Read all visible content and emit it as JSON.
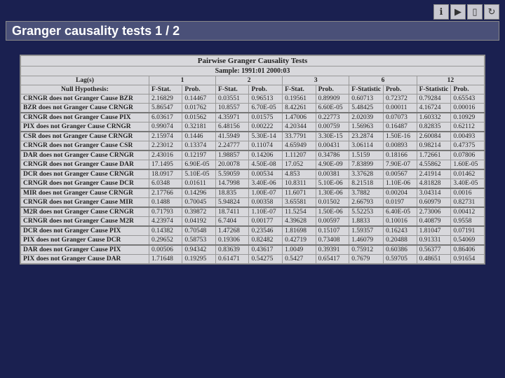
{
  "background_color": "#1a2050",
  "title_bar": {
    "text": "Granger causality tests 1 / 2",
    "bg": "#4a5078",
    "color": "#ffffff",
    "fontsize": 18
  },
  "nav": {
    "icons": [
      "info-icon",
      "play-icon",
      "doc-icon",
      "refresh-icon"
    ]
  },
  "table": {
    "type": "table",
    "bg": "#d8d8dc",
    "border_color": "#999999",
    "fontsize": 9.5,
    "title": "Pairwise Granger Causality Tests",
    "sample": "Sample: 1991:01 2000:03",
    "lag_label": "Lag(s)",
    "null_hyp_label": "Null Hypothesis:",
    "lags": [
      "1",
      "2",
      "3",
      "6",
      "12"
    ],
    "col_pair": [
      "F-Stat.",
      "Prob."
    ],
    "col_pair_alt": [
      "F-Statistic",
      "Prob."
    ],
    "groups": [
      {
        "rows": [
          {
            "hyp": "CRNGR does not Granger Cause BZR",
            "v": [
              "2.16829",
              "0.14467",
              "0.03551",
              "0.96513",
              "0.19561",
              "0.89909",
              "0.60713",
              "0.72372",
              "0.79284",
              "0.65543"
            ]
          },
          {
            "hyp": "BZR does not Granger Cause CRNGR",
            "v": [
              "5.86547",
              "0.01762",
              "10.8557",
              "6.70E-05",
              "8.42261",
              "6.60E-05",
              "5.48425",
              "0.00011",
              "4.16724",
              "0.00016"
            ]
          }
        ]
      },
      {
        "rows": [
          {
            "hyp": "CRNGR does not Granger Cause PIX",
            "v": [
              "6.03617",
              "0.01562",
              "4.35971",
              "0.01575",
              "1.47006",
              "0.22773",
              "2.02039",
              "0.07073",
              "1.60332",
              "0.10929"
            ]
          },
          {
            "hyp": "PIX does not Granger Cause CRNGR",
            "v": [
              "0.99074",
              "0.32181",
              "6.48156",
              "0.00222",
              "4.20344",
              "0.00759",
              "1.56963",
              "0.16487",
              "0.82835",
              "0.62112"
            ]
          }
        ]
      },
      {
        "rows": [
          {
            "hyp": "CSR does not Granger Cause CRNGR",
            "v": [
              "2.15974",
              "0.1446",
              "41.5949",
              "5.30E-14",
              "33.7791",
              "3.30E-15",
              "23.2874",
              "1.50E-16",
              "2.60084",
              "0.00493"
            ]
          },
          {
            "hyp": "CRNGR does not Granger Cause CSR",
            "v": [
              "2.23012",
              "0.13374",
              "2.24777",
              "0.11074",
              "4.65949",
              "0.00431",
              "3.06114",
              "0.00893",
              "0.98214",
              "0.47375"
            ]
          }
        ]
      },
      {
        "rows": [
          {
            "hyp": "DAR does not Granger Cause CRNGR",
            "v": [
              "2.43016",
              "0.12197",
              "1.98857",
              "0.14206",
              "1.11207",
              "0.34786",
              "1.5159",
              "0.18166",
              "1.72661",
              "0.07806"
            ]
          },
          {
            "hyp": "CRNGR does not Granger Cause DAR",
            "v": [
              "17.1495",
              "6.90E-05",
              "20.0078",
              "4.50E-08",
              "17.052",
              "4.90E-09",
              "7.83899",
              "7.90E-07",
              "4.55862",
              "1.60E-05"
            ]
          }
        ]
      },
      {
        "rows": [
          {
            "hyp": "DCR does not Granger Cause CRNGR",
            "v": [
              "18.0917",
              "5.10E-05",
              "5.59059",
              "0.00534",
              "4.853",
              "0.00381",
              "3.37628",
              "0.00567",
              "2.41914",
              "0.01462"
            ]
          },
          {
            "hyp": "CRNGR does not Granger Cause DCR",
            "v": [
              "6.0348",
              "0.01611",
              "14.7998",
              "3.40E-06",
              "10.8311",
              "5.10E-06",
              "8.21518",
              "1.10E-06",
              "4.81828",
              "3.40E-05"
            ]
          }
        ]
      },
      {
        "rows": [
          {
            "hyp": "MIR does not Granger Cause CRNGR",
            "v": [
              "2.17766",
              "0.14296",
              "18.835",
              "1.00E-07",
              "11.6071",
              "1.30E-06",
              "3.7882",
              "0.00204",
              "3.04314",
              "0.0016"
            ]
          },
          {
            "hyp": "CRNGR does not Granger Cause MIR",
            "v": [
              "0.1488",
              "0.70045",
              "5.94824",
              "0.00358",
              "3.65581",
              "0.01502",
              "2.66793",
              "0.0197",
              "0.60979",
              "0.82731"
            ]
          }
        ]
      },
      {
        "rows": [
          {
            "hyp": "M2R does not Granger Cause CRNGR",
            "v": [
              "0.71793",
              "0.39872",
              "18.7411",
              "1.10E-07",
              "11.5254",
              "1.50E-06",
              "5.52253",
              "6.40E-05",
              "2.73006",
              "0.00412"
            ]
          },
          {
            "hyp": "CRNGR does not Granger Cause M2R",
            "v": [
              "4.23974",
              "0.04192",
              "6.7404",
              "0.00177",
              "4.39628",
              "0.00597",
              "1.8833",
              "0.10016",
              "0.40879",
              "0.9558"
            ]
          }
        ]
      },
      {
        "rows": [
          {
            "hyp": "DCR does not Granger Cause PIX",
            "v": [
              "0.14382",
              "0.70548",
              "1.47268",
              "0.23546",
              "1.81698",
              "0.15107",
              "1.59357",
              "0.16243",
              "1.81047",
              "0.07191"
            ]
          },
          {
            "hyp": "PIX does not Granger Cause DCR",
            "v": [
              "0.29652",
              "0.58753",
              "0.19306",
              "0.82482",
              "0.42719",
              "0.73408",
              "1.46079",
              "0.20488",
              "0.91331",
              "0.54069"
            ]
          }
        ]
      },
      {
        "rows": [
          {
            "hyp": "DAR does not Granger Cause PIX",
            "v": [
              "0.00506",
              "0.94342",
              "0.83639",
              "0.43617",
              "1.0049",
              "0.39391",
              "0.75912",
              "0.60386",
              "0.56377",
              "0.86406"
            ]
          },
          {
            "hyp": "PIX does not Granger Cause DAR",
            "v": [
              "1.71648",
              "0.19295",
              "0.61471",
              "0.54275",
              "0.5427",
              "0.65417",
              "0.7679",
              "0.59705",
              "0.48651",
              "0.91654"
            ]
          }
        ]
      }
    ]
  }
}
